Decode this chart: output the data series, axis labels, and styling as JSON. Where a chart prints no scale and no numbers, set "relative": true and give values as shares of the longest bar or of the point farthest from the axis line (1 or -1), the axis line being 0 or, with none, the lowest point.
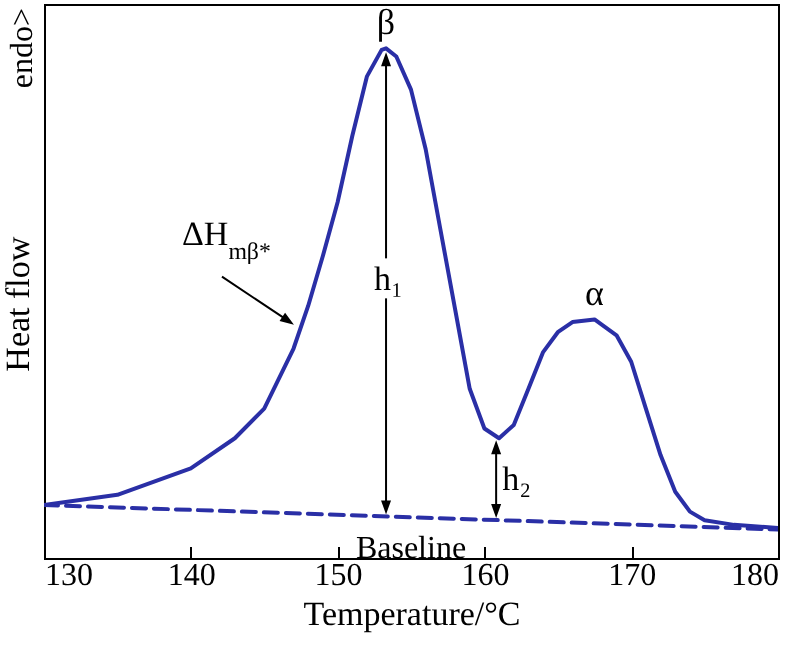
{
  "chart_data": {
    "type": "line",
    "relative": true,
    "xlabel": "Temperature/°C",
    "ylabel": "Heat flow",
    "xlim": [
      130,
      180
    ],
    "xticks": [
      130,
      140,
      150,
      160,
      170,
      180
    ],
    "grid": false,
    "series": [
      {
        "color": "#2a2fa6",
        "line_style": "solid",
        "x": [
          130,
          135,
          140,
          143,
          145,
          147,
          148,
          149,
          150,
          151,
          152,
          153,
          153.3,
          154,
          155,
          156,
          157,
          158,
          159,
          160,
          161,
          162,
          163,
          164,
          165,
          166,
          167.5,
          169,
          170,
          171,
          172,
          173,
          174,
          175,
          177,
          180
        ],
        "values": [
          0.104,
          0.124,
          0.176,
          0.235,
          0.293,
          0.411,
          0.495,
          0.593,
          0.698,
          0.828,
          0.945,
          0.997,
          1,
          0.984,
          0.919,
          0.802,
          0.645,
          0.489,
          0.332,
          0.254,
          0.235,
          0.261,
          0.332,
          0.404,
          0.443,
          0.463,
          0.468,
          0.437,
          0.385,
          0.293,
          0.202,
          0.13,
          0.091,
          0.074,
          0.065,
          0.059
        ]
      },
      {
        "color": "#2a2fa6",
        "line_style": "dashed",
        "x": [
          130,
          180
        ],
        "values": [
          0.104,
          0.056
        ]
      }
    ],
    "annotations": [
      {
        "text": "β",
        "x": 153.3,
        "y": 1
      },
      {
        "text": "α",
        "x": 167.5,
        "y": 0.468
      },
      {
        "text": "ΔH$_{mβ*}$",
        "x": 147.3,
        "y": 0.45
      },
      "h₁",
      {
        "text": "h₂",
        "x": 160.8,
        "y": 0.235
      },
      {
        "text": "Baseline",
        "x": 155,
        "y": 0.07
      },
      "endo>"
    ]
  }
}
